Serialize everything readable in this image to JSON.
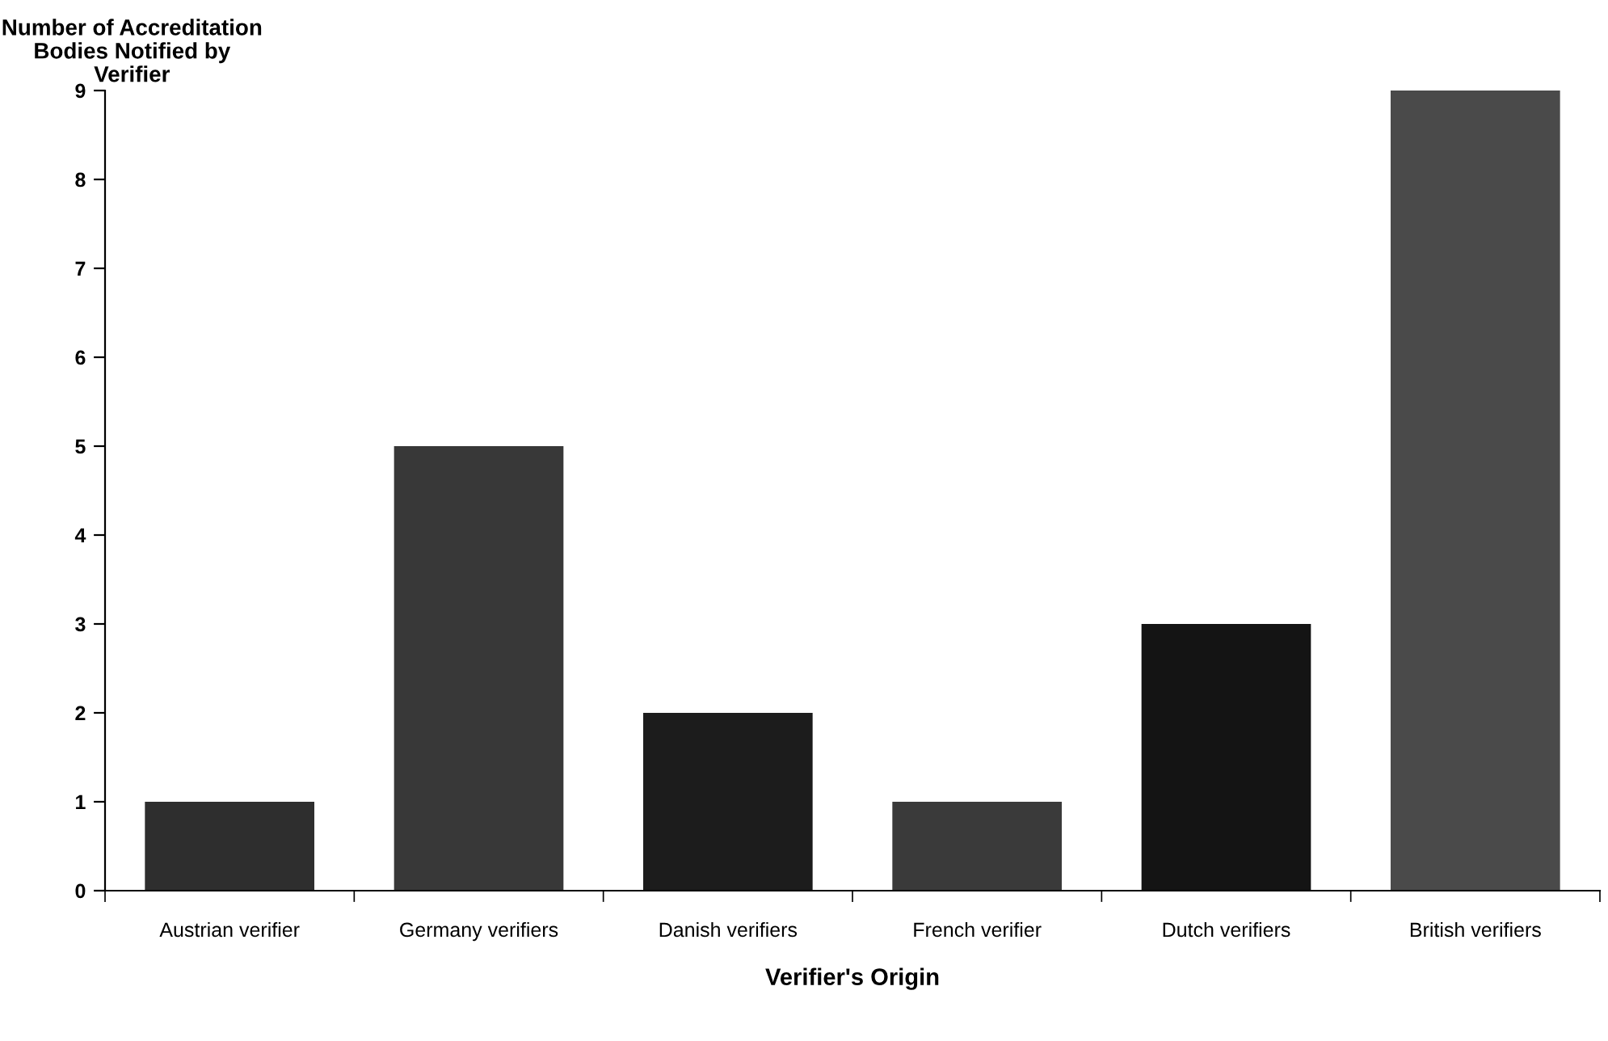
{
  "chart_data": {
    "type": "bar",
    "ylabel": "Number of Accreditation\nBodies Notified by\nVerifier",
    "xlabel": "Verifier's Origin",
    "categories": [
      "Austrian verifier",
      "Germany verifiers",
      "Danish verifiers",
      "French verifier",
      "Dutch verifiers",
      "British verifiers"
    ],
    "values": [
      1,
      5,
      2,
      1,
      3,
      9
    ],
    "colors": [
      "#2e2e2e",
      "#383838",
      "#1c1c1c",
      "#3a3a3a",
      "#141414",
      "#4a4a4a"
    ],
    "ylim": [
      0,
      9
    ],
    "yticks": [
      0,
      1,
      2,
      3,
      4,
      5,
      6,
      7,
      8,
      9
    ],
    "grid": false,
    "legend": false
  }
}
